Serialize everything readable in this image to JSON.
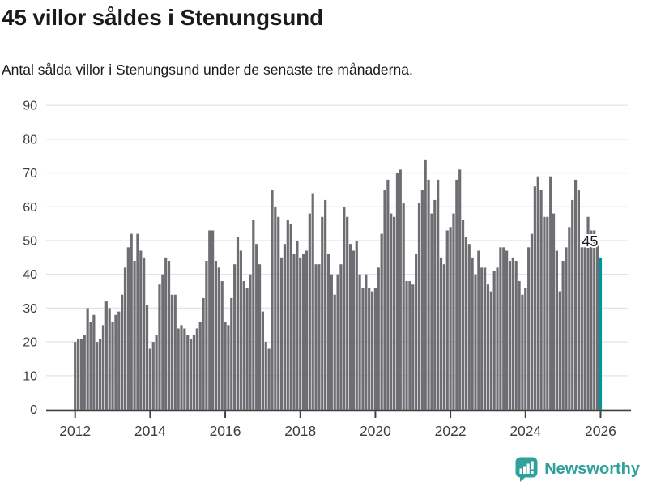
{
  "header": {
    "title": "45 villor såldes i Stenungsund",
    "subtitle": "Antal sålda villor i Stenungsund under de senaste tre månaderna."
  },
  "chart_data": {
    "type": "bar",
    "frequency": "monthly",
    "x_start": "2012-01",
    "x_end": "2026-01",
    "values": [
      20,
      21,
      21,
      22,
      30,
      26,
      28,
      20,
      21,
      25,
      32,
      30,
      26,
      28,
      29,
      34,
      42,
      48,
      52,
      44,
      52,
      47,
      45,
      31,
      18,
      20,
      22,
      37,
      40,
      45,
      44,
      34,
      34,
      24,
      25,
      24,
      22,
      21,
      22,
      24,
      26,
      33,
      44,
      53,
      53,
      44,
      42,
      38,
      26,
      25,
      33,
      43,
      51,
      47,
      38,
      36,
      40,
      56,
      49,
      43,
      29,
      20,
      18,
      65,
      60,
      57,
      45,
      49,
      56,
      55,
      46,
      50,
      45,
      46,
      47,
      58,
      64,
      43,
      43,
      57,
      62,
      46,
      40,
      34,
      40,
      43,
      60,
      57,
      49,
      47,
      50,
      40,
      36,
      40,
      36,
      35,
      36,
      42,
      52,
      65,
      68,
      58,
      57,
      70,
      71,
      61,
      38,
      38,
      37,
      46,
      61,
      65,
      74,
      68,
      58,
      62,
      68,
      45,
      43,
      53,
      54,
      58,
      68,
      71,
      56,
      51,
      49,
      45,
      40,
      47,
      42,
      42,
      37,
      35,
      41,
      42,
      48,
      48,
      47,
      44,
      45,
      44,
      38,
      34,
      36,
      48,
      52,
      66,
      69,
      65,
      57,
      57,
      69,
      58,
      47,
      35,
      44,
      48,
      54,
      62,
      68,
      65,
      48,
      48,
      57,
      53,
      53,
      49,
      45
    ],
    "highlight": {
      "index": 168,
      "value": 45,
      "label": "45"
    },
    "ylim": [
      0,
      90
    ],
    "yticks": [
      0,
      10,
      20,
      30,
      40,
      50,
      60,
      70,
      80,
      90
    ],
    "xticks": [
      2012,
      2014,
      2016,
      2018,
      2020,
      2022,
      2024,
      2026
    ],
    "grid": "horizontal",
    "legend": "none",
    "bar_color": "#6d6d72",
    "highlight_color": "#00979c",
    "axis_color": "#404040",
    "grid_color": "#e3e3e3",
    "tick_label_color": "#3d3d3d"
  },
  "annotation": {
    "last_value_label": "45"
  },
  "footer": {
    "brand": "Newsworthy",
    "brand_color": "#2ea19c"
  }
}
